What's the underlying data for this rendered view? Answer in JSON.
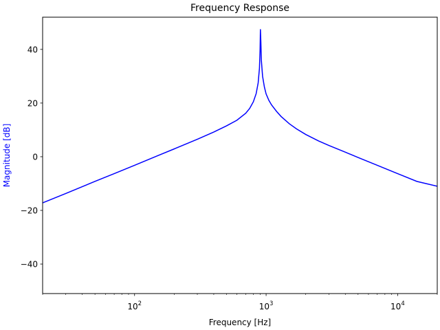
{
  "chart_data": {
    "type": "line",
    "title": "Frequency Response",
    "xlabel": "Frequency [Hz]",
    "ylabel": "Magnitude [dB]",
    "xscale": "log",
    "xlim": [
      20,
      20000
    ],
    "ylim": [
      -51,
      52
    ],
    "grid": false,
    "x_ticks": [
      {
        "value": 100,
        "base": "10",
        "exp": "2"
      },
      {
        "value": 1000,
        "base": "10",
        "exp": "3"
      },
      {
        "value": 10000,
        "base": "10",
        "exp": "4"
      }
    ],
    "y_ticks": [
      {
        "value": -40,
        "label": "−40"
      },
      {
        "value": -20,
        "label": "−20"
      },
      {
        "value": 0,
        "label": "0"
      },
      {
        "value": 20,
        "label": "20"
      },
      {
        "value": 40,
        "label": "40"
      }
    ],
    "colors": {
      "line": "#0000ff",
      "ylabel": "#0000ff",
      "axes": "#000000"
    },
    "series": [
      {
        "x": [
          20,
          30,
          50,
          70,
          100,
          150,
          200,
          300,
          400,
          500,
          600,
          700,
          750,
          800,
          840,
          870,
          890,
          900,
          905,
          912,
          920,
          940,
          970,
          1000,
          1050,
          1100,
          1200,
          1300,
          1500,
          1700,
          2000,
          2500,
          3000,
          4000,
          5000,
          7000,
          10000,
          14000,
          20000
        ],
        "y": [
          -17.2,
          -13.7,
          -9.2,
          -6.3,
          -3.2,
          0.4,
          2.9,
          6.5,
          9.2,
          11.5,
          13.6,
          16.2,
          18.0,
          20.5,
          23.5,
          27.5,
          33.0,
          40.0,
          47.5,
          43.0,
          36.0,
          30.0,
          26.0,
          23.4,
          21.0,
          19.3,
          16.9,
          15.0,
          12.3,
          10.4,
          8.3,
          5.9,
          4.2,
          1.7,
          -0.3,
          -3.2,
          -6.3,
          -9.2,
          -11.0
        ]
      }
    ]
  }
}
